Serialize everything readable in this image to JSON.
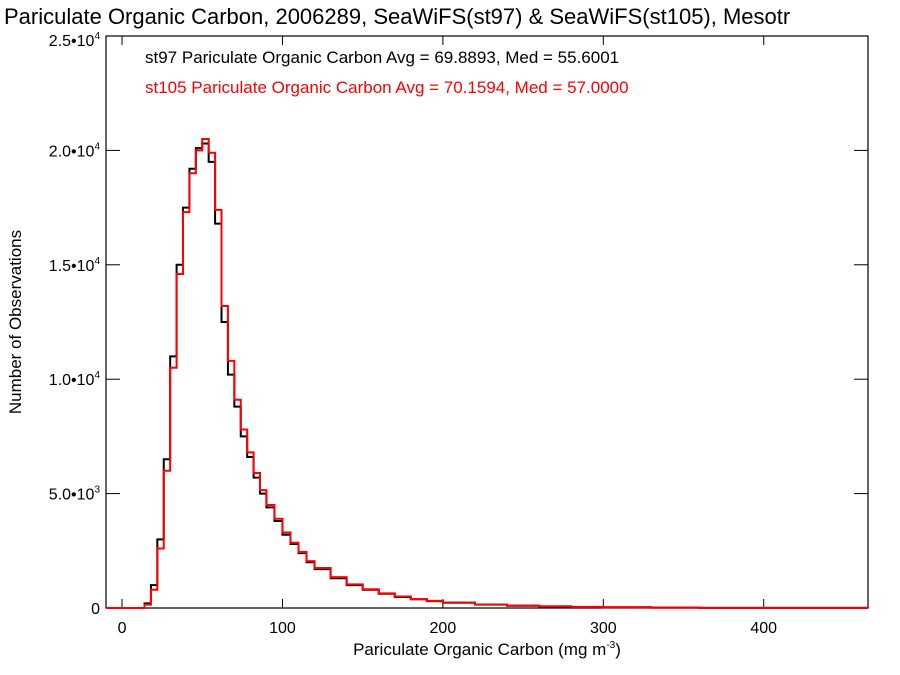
{
  "chart_data": {
    "type": "line",
    "style": "step-histogram",
    "title": "Pariculate Organic Carbon, 2006289, SeaWiFS(st97) & SeaWiFS(st105), Mesotr",
    "xlabel": "Pariculate Organic Carbon (mg m",
    "xlabel_exponent": "-3",
    "xlabel_suffix": ")",
    "ylabel": "Number of Observations",
    "xlim": [
      -10,
      465
    ],
    "ylim": [
      0,
      25000
    ],
    "x_ticks": [
      {
        "value": 0,
        "label": "0"
      },
      {
        "value": 100,
        "label": "100"
      },
      {
        "value": 200,
        "label": "200"
      },
      {
        "value": 300,
        "label": "300"
      },
      {
        "value": 400,
        "label": "400"
      }
    ],
    "y_ticks": [
      {
        "value": 0,
        "mantissa": "0",
        "exponent": ""
      },
      {
        "value": 5000,
        "mantissa": "5.0•10",
        "exponent": "3"
      },
      {
        "value": 10000,
        "mantissa": "1.0•10",
        "exponent": "4"
      },
      {
        "value": 15000,
        "mantissa": "1.5•10",
        "exponent": "4"
      },
      {
        "value": 20000,
        "mantissa": "2.0•10",
        "exponent": "4"
      },
      {
        "value": 25000,
        "mantissa": "2.5•10",
        "exponent": "4"
      }
    ],
    "legend_position": "top-left",
    "series": [
      {
        "name": "st97 Pariculate Organic Carbon Avg = 69.8893, Med = 55.6001",
        "color": "#000000",
        "x": [
          -10,
          10,
          14,
          18,
          22,
          26,
          30,
          34,
          38,
          42,
          46,
          50,
          54,
          58,
          62,
          66,
          70,
          74,
          78,
          82,
          86,
          90,
          95,
          100,
          105,
          110,
          115,
          120,
          130,
          140,
          150,
          160,
          170,
          180,
          190,
          200,
          220,
          240,
          260,
          280,
          300,
          330,
          360,
          400,
          465
        ],
        "y": [
          0,
          0,
          200,
          1000,
          3000,
          6500,
          11000,
          15000,
          17500,
          19200,
          20100,
          20300,
          19500,
          16800,
          12500,
          10200,
          8800,
          7500,
          6600,
          5700,
          5000,
          4400,
          3800,
          3200,
          2800,
          2400,
          2000,
          1700,
          1300,
          1000,
          800,
          620,
          480,
          380,
          300,
          230,
          150,
          100,
          70,
          45,
          30,
          15,
          8,
          3,
          0
        ]
      },
      {
        "name": "st105 Pariculate Organic Carbon Avg = 70.1594, Med = 57.0000",
        "color": "#ff0000",
        "x": [
          -10,
          10,
          14,
          18,
          22,
          26,
          30,
          34,
          38,
          42,
          46,
          50,
          54,
          58,
          62,
          66,
          70,
          74,
          78,
          82,
          86,
          90,
          95,
          100,
          105,
          110,
          115,
          120,
          130,
          140,
          150,
          160,
          170,
          180,
          190,
          200,
          220,
          240,
          260,
          280,
          300,
          330,
          360,
          400,
          465
        ],
        "y": [
          0,
          0,
          150,
          800,
          2600,
          6000,
          10500,
          14600,
          17300,
          19000,
          20000,
          20500,
          19900,
          17400,
          13200,
          10800,
          9100,
          7800,
          6800,
          5900,
          5150,
          4500,
          3900,
          3300,
          2850,
          2450,
          2050,
          1750,
          1350,
          1030,
          820,
          640,
          500,
          390,
          310,
          240,
          155,
          105,
          72,
          47,
          31,
          16,
          8,
          3,
          0
        ]
      }
    ]
  }
}
